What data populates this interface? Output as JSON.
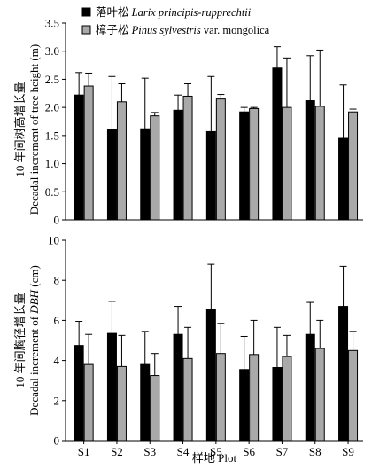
{
  "legend": [
    {
      "cn": "落叶松 ",
      "latin": "Larix principis-rupprechtii",
      "suffix": "",
      "color": "#000000"
    },
    {
      "cn": "樟子松 ",
      "latin": "Pinus sylvestris",
      "suffix": " var. mongolica",
      "color": "#a9a9a9"
    }
  ],
  "x_axis_title": "样地 Plot",
  "chart_data": [
    {
      "type": "bar",
      "panel": "top",
      "categories": [
        "S1",
        "S2",
        "S3",
        "S4",
        "S5",
        "S6",
        "S7",
        "S8",
        "S9"
      ],
      "ylabel": {
        "line1": "10 年间树高增长量",
        "line2": "Decadal increment of tree height (m)"
      },
      "ylim": [
        0,
        3.5
      ],
      "yticks": [
        "0",
        "0.5",
        "1.0",
        "1.5",
        "2.0",
        "2.5",
        "3.0",
        "3.5"
      ],
      "series": [
        {
          "name": "Larix principis-rupprechtii",
          "color": "#000000",
          "values": [
            2.22,
            1.6,
            1.62,
            1.95,
            1.57,
            1.92,
            2.7,
            2.12,
            1.45
          ],
          "errors": [
            0.4,
            0.95,
            0.9,
            0.27,
            0.98,
            0.08,
            0.38,
            0.8,
            0.95
          ]
        },
        {
          "name": "Pinus sylvestris var. mongolica",
          "color": "#a9a9a9",
          "values": [
            2.38,
            2.1,
            1.85,
            2.2,
            2.15,
            1.98,
            2.0,
            2.02,
            1.92
          ],
          "errors": [
            0.23,
            0.32,
            0.06,
            0.22,
            0.08,
            0.02,
            0.88,
            1.0,
            0.05
          ]
        }
      ]
    },
    {
      "type": "bar",
      "panel": "bottom",
      "categories": [
        "S1",
        "S2",
        "S3",
        "S4",
        "S5",
        "S6",
        "S7",
        "S8",
        "S9"
      ],
      "ylabel": {
        "line1": "10 年间胸径增长量",
        "line2": "Decadal increment of ",
        "line2_italic": "DBH",
        "line2_end": " (cm)"
      },
      "ylim": [
        0,
        10
      ],
      "yticks": [
        "0",
        "2",
        "4",
        "6",
        "8",
        "10"
      ],
      "series": [
        {
          "name": "Larix principis-rupprechtii",
          "color": "#000000",
          "values": [
            4.75,
            5.35,
            3.8,
            5.3,
            6.55,
            3.55,
            3.65,
            5.3,
            6.7
          ],
          "errors": [
            1.2,
            1.6,
            1.65,
            1.4,
            2.25,
            1.65,
            2.0,
            1.6,
            2.0
          ]
        },
        {
          "name": "Pinus sylvestris var. mongolica",
          "color": "#a9a9a9",
          "values": [
            3.8,
            3.7,
            3.25,
            4.1,
            4.35,
            4.3,
            4.2,
            4.6,
            4.5
          ],
          "errors": [
            1.5,
            1.55,
            1.1,
            1.55,
            1.5,
            1.7,
            1.05,
            1.4,
            0.95
          ]
        }
      ]
    }
  ]
}
